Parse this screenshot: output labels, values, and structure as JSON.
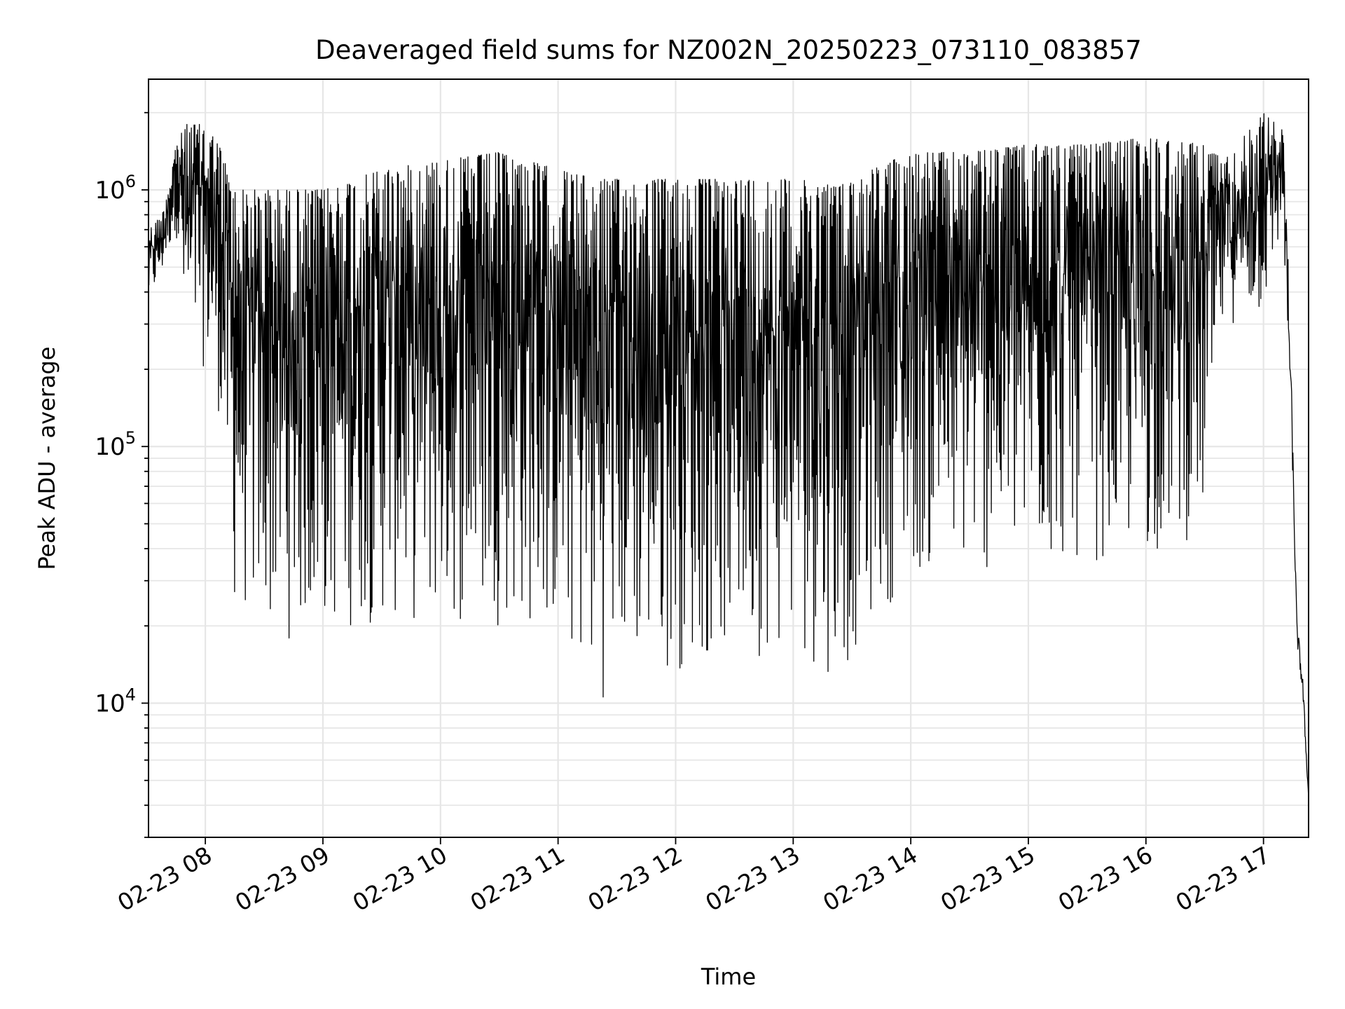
{
  "chart_data": {
    "type": "line",
    "title": "Deaveraged field sums for NZ002N_20250223_073110_083857",
    "xlabel": "Time",
    "ylabel": "Peak ADU - average",
    "yscale": "log",
    "xlim": [
      "02-23 07:31",
      "02-23 17:23"
    ],
    "ylim": [
      3000,
      2700000
    ],
    "x_ticks": [
      "02-23 08",
      "02-23 09",
      "02-23 10",
      "02-23 11",
      "02-23 12",
      "02-23 13",
      "02-23 14",
      "02-23 15",
      "02-23 16",
      "02-23 17"
    ],
    "y_ticks": [
      {
        "base": "10",
        "exp": "4",
        "value": 10000
      },
      {
        "base": "10",
        "exp": "5",
        "value": 100000
      },
      {
        "base": "10",
        "exp": "6",
        "value": 1000000
      }
    ],
    "grid": true,
    "line_color": "#000000",
    "envelope": [
      {
        "t": "07:31",
        "max": 700000,
        "min": 330000
      },
      {
        "t": "07:38",
        "max": 800000,
        "min": 450000
      },
      {
        "t": "07:45",
        "max": 1500000,
        "min": 700000
      },
      {
        "t": "07:50",
        "max": 1800000,
        "min": 200000
      },
      {
        "t": "08:00",
        "max": 1800000,
        "min": 200000
      },
      {
        "t": "08:07",
        "max": 1500000,
        "min": 130000
      },
      {
        "t": "08:15",
        "max": 1000000,
        "min": 22000
      },
      {
        "t": "08:30",
        "max": 1000000,
        "min": 18000
      },
      {
        "t": "08:45",
        "max": 1000000,
        "min": 17000
      },
      {
        "t": "09:00",
        "max": 1000000,
        "min": 18000
      },
      {
        "t": "09:30",
        "max": 1200000,
        "min": 20000
      },
      {
        "t": "10:00",
        "max": 1300000,
        "min": 19000
      },
      {
        "t": "10:30",
        "max": 1400000,
        "min": 20000
      },
      {
        "t": "11:00",
        "max": 1200000,
        "min": 17000
      },
      {
        "t": "11:20",
        "max": 1100000,
        "min": 9300
      },
      {
        "t": "11:30",
        "max": 1100000,
        "min": 13000
      },
      {
        "t": "12:00",
        "max": 1100000,
        "min": 13000
      },
      {
        "t": "12:30",
        "max": 1100000,
        "min": 15000
      },
      {
        "t": "13:00",
        "max": 1100000,
        "min": 15000
      },
      {
        "t": "13:25",
        "max": 1050000,
        "min": 12000
      },
      {
        "t": "13:40",
        "max": 1200000,
        "min": 20000
      },
      {
        "t": "14:00",
        "max": 1400000,
        "min": 30000
      },
      {
        "t": "14:30",
        "max": 1400000,
        "min": 30000
      },
      {
        "t": "15:00",
        "max": 1500000,
        "min": 30000
      },
      {
        "t": "15:30",
        "max": 1500000,
        "min": 35000
      },
      {
        "t": "16:00",
        "max": 1600000,
        "min": 35000
      },
      {
        "t": "16:30",
        "max": 1500000,
        "min": 45000
      },
      {
        "t": "16:40",
        "max": 1300000,
        "min": 300000
      },
      {
        "t": "17:00",
        "max": 2000000,
        "min": 300000
      },
      {
        "t": "17:10",
        "max": 1700000,
        "min": 700000
      },
      {
        "t": "17:14",
        "max": 300000,
        "min": 100000
      },
      {
        "t": "17:17",
        "max": 25000,
        "min": 15000
      },
      {
        "t": "17:20",
        "max": 15000,
        "min": 9000
      },
      {
        "t": "17:23",
        "max": 4500,
        "min": 4000
      }
    ]
  }
}
